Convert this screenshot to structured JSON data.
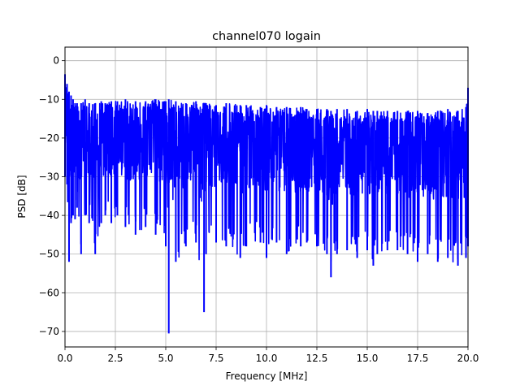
{
  "chart_data": {
    "type": "line",
    "title": "channel070 logain",
    "xlabel": "Frequency [MHz]",
    "ylabel": "PSD [dB]",
    "xlim": [
      0,
      20
    ],
    "ylim": [
      -74,
      3.5
    ],
    "xticks": [
      0,
      2.5,
      5,
      7.5,
      10,
      12.5,
      15,
      17.5,
      20
    ],
    "xtick_labels": [
      "0.0",
      "2.5",
      "5.0",
      "7.5",
      "10.0",
      "12.5",
      "15.0",
      "17.5",
      "20.0"
    ],
    "yticks": [
      0,
      -10,
      -20,
      -30,
      -40,
      -50,
      -60,
      -70
    ],
    "ytick_labels": [
      "0",
      "−10",
      "−20",
      "−30",
      "−40",
      "−50",
      "−60",
      "−70"
    ],
    "grid": true,
    "series": [
      {
        "color": "#0000ff",
        "description_free": true,
        "x": [
          0.0,
          0.1,
          0.2,
          0.3,
          0.4,
          0.5,
          0.6,
          0.8,
          1.0,
          1.2,
          1.5,
          1.8,
          2.0,
          2.3,
          2.6,
          3.0,
          3.5,
          4.0,
          4.5,
          5.0,
          5.15,
          5.5,
          6.0,
          6.5,
          6.9,
          7.0,
          7.5,
          8.0,
          8.7,
          9.0,
          9.7,
          10.0,
          10.5,
          11.0,
          11.7,
          12.0,
          12.5,
          13.0,
          13.2,
          13.5,
          14.0,
          14.5,
          15.0,
          15.3,
          15.5,
          16.0,
          16.5,
          17.0,
          17.5,
          18.0,
          18.5,
          19.0,
          19.5,
          19.9,
          20.0
        ],
        "upper": [
          -3.5,
          -6,
          -8,
          -9,
          -10,
          -11,
          -11,
          -11,
          -10,
          -11,
          -11,
          -10.5,
          -11,
          -10.5,
          -10.5,
          -10,
          -10.5,
          -10.5,
          -10,
          -10.5,
          -10,
          -10.5,
          -11,
          -10.5,
          -11,
          -11,
          -11.5,
          -11,
          -11.5,
          -11.5,
          -12,
          -11.5,
          -12,
          -12,
          -12,
          -12.5,
          -12.5,
          -12.5,
          -13,
          -12.5,
          -12.5,
          -13,
          -12.5,
          -13,
          -13,
          -13,
          -13,
          -13,
          -13,
          -13.5,
          -13,
          -12.5,
          -13,
          -12,
          -7
        ],
        "lower": [
          -30,
          -32,
          -52,
          -42,
          -40,
          -41,
          -38,
          -50,
          -40,
          -42,
          -50,
          -42,
          -40,
          -42,
          -40,
          -43,
          -45,
          -43,
          -45,
          -48,
          -70.5,
          -52,
          -48,
          -47,
          -65,
          -50,
          -47,
          -48,
          -51,
          -48,
          -47,
          -51,
          -47,
          -50,
          -48,
          -47,
          -48,
          -50,
          -56,
          -50,
          -49,
          -51,
          -49,
          -53,
          -50,
          -49,
          -49,
          -50,
          -52,
          -50,
          -52,
          -51,
          -53,
          -51,
          -48
        ]
      }
    ]
  }
}
